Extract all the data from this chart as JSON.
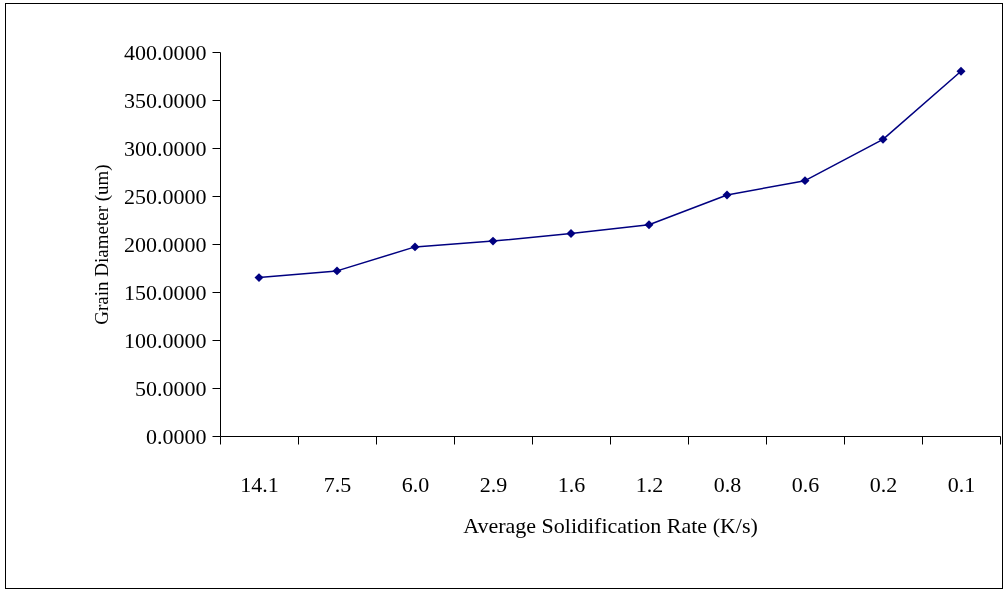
{
  "chart_data": {
    "type": "line",
    "xlabel": "Average Solidification Rate (K/s)",
    "ylabel": "Grain Diameter (um)",
    "categories": [
      "14.1",
      "7.5",
      "6.0",
      "2.9",
      "1.6",
      "1.2",
      "0.8",
      "0.6",
      "0.2",
      "0.1"
    ],
    "series": [
      {
        "color": "#000080",
        "values": [
          165,
          172,
          197,
          203,
          211,
          220,
          251,
          266,
          309,
          380
        ]
      }
    ],
    "ylim": [
      0,
      400
    ],
    "yticks": [
      {
        "value": 0,
        "label": "0.0000"
      },
      {
        "value": 50,
        "label": "50.0000"
      },
      {
        "value": 100,
        "label": "100.0000"
      },
      {
        "value": 150,
        "label": "150.0000"
      },
      {
        "value": 200,
        "label": "200.0000"
      },
      {
        "value": 250,
        "label": "250.0000"
      },
      {
        "value": 300,
        "label": "300.0000"
      },
      {
        "value": 350,
        "label": "350.0000"
      },
      {
        "value": 400,
        "label": "400.0000"
      }
    ],
    "grid": false,
    "marker": "diamond",
    "line_style": "solid"
  }
}
